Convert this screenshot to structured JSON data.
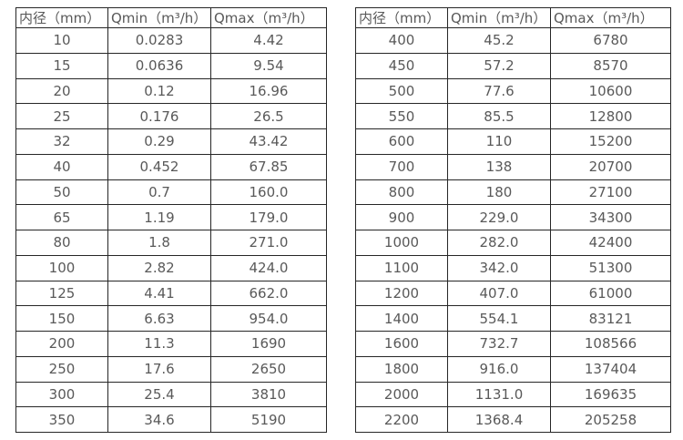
{
  "colors": {
    "background": "#ffffff",
    "text": "#595959",
    "table_border": "#262626"
  },
  "header": {
    "diameter": "内径（mm）",
    "qmin": "Qmin（m³/h）",
    "qmax": "Qmax（m³/h）"
  },
  "left_table": {
    "rows": [
      [
        "10",
        "0.0283",
        "4.42"
      ],
      [
        "15",
        "0.0636",
        "9.54"
      ],
      [
        "20",
        "0.12",
        "16.96"
      ],
      [
        "25",
        "0.176",
        "26.5"
      ],
      [
        "32",
        "0.29",
        "43.42"
      ],
      [
        "40",
        "0.452",
        "67.85"
      ],
      [
        "50",
        "0.7",
        "160.0"
      ],
      [
        "65",
        "1.19",
        "179.0"
      ],
      [
        "80",
        "1.8",
        "271.0"
      ],
      [
        "100",
        "2.82",
        "424.0"
      ],
      [
        "125",
        "4.41",
        "662.0"
      ],
      [
        "150",
        "6.63",
        "954.0"
      ],
      [
        "200",
        "11.3",
        "1690"
      ],
      [
        "250",
        "17.6",
        "2650"
      ],
      [
        "300",
        "25.4",
        "3810"
      ],
      [
        "350",
        "34.6",
        "5190"
      ]
    ]
  },
  "right_table": {
    "rows": [
      [
        "400",
        "45.2",
        "6780"
      ],
      [
        "450",
        "57.2",
        "8570"
      ],
      [
        "500",
        "77.6",
        "10600"
      ],
      [
        "550",
        "85.5",
        "12800"
      ],
      [
        "600",
        "110",
        "15200"
      ],
      [
        "700",
        "138",
        "20700"
      ],
      [
        "800",
        "180",
        "27100"
      ],
      [
        "900",
        "229.0",
        "34300"
      ],
      [
        "1000",
        "282.0",
        "42400"
      ],
      [
        "1100",
        "342.0",
        "51300"
      ],
      [
        "1200",
        "407.0",
        "61000"
      ],
      [
        "1400",
        "554.1",
        "83121"
      ],
      [
        "1600",
        "732.7",
        "108566"
      ],
      [
        "1800",
        "916.0",
        "137404"
      ],
      [
        "2000",
        "1131.0",
        "169635"
      ],
      [
        "2200",
        "1368.4",
        "205258"
      ]
    ]
  }
}
